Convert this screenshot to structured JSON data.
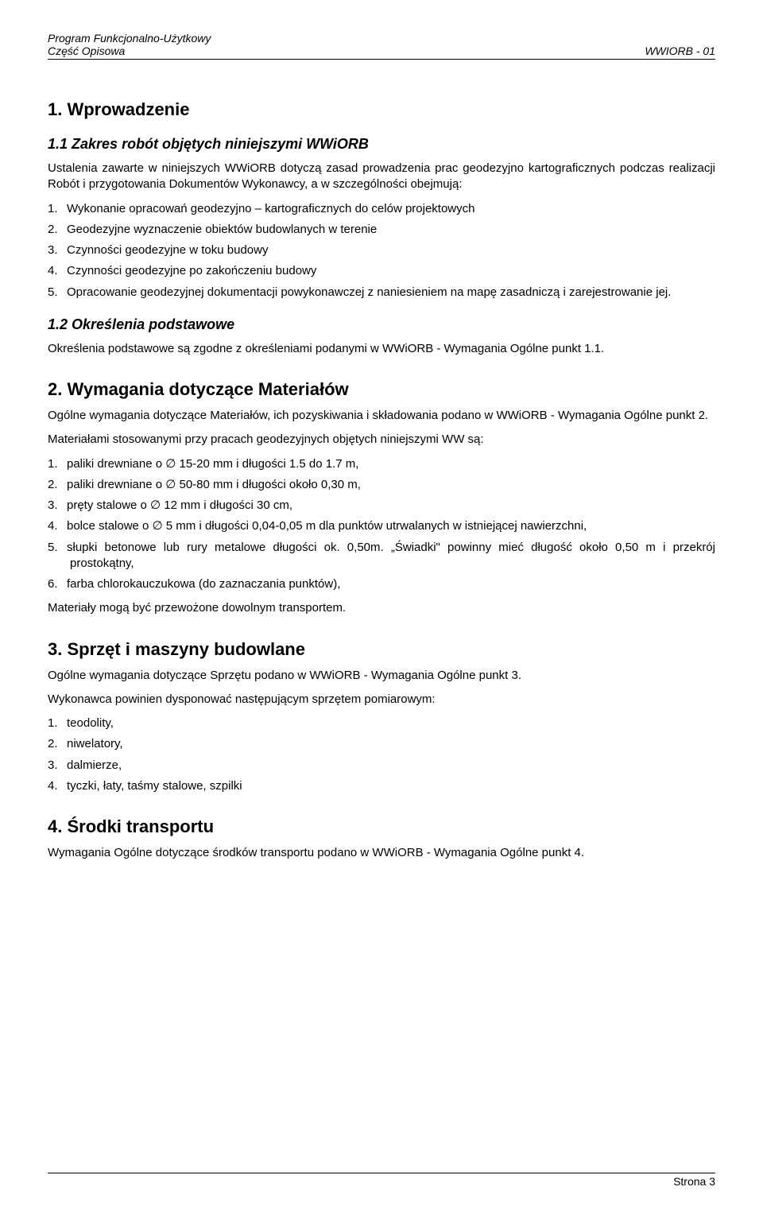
{
  "header": {
    "left_line1": "Program Funkcjonalno-Użytkowy",
    "left_line2": "Część Opisowa",
    "right": "WWIORB - 01"
  },
  "sections": {
    "s1": {
      "title": "1. Wprowadzenie",
      "s1_1": {
        "title": "1.1 Zakres robót objętych niniejszymi WWiORB",
        "intro": "Ustalenia zawarte w niniejszych WWiORB dotyczą zasad prowadzenia prac geodezyjno kartograficznych podczas realizacji Robót i przygotowania Dokumentów Wykonawcy, a w szczególności obejmują:",
        "items": [
          "Wykonanie opracowań geodezyjno – kartograficznych do celów projektowych",
          "Geodezyjne wyznaczenie obiektów budowlanych w terenie",
          "Czynności geodezyjne w toku budowy",
          "Czynności geodezyjne po zakończeniu budowy",
          "Opracowanie geodezyjnej dokumentacji powykonawczej z naniesieniem na mapę zasadniczą i zarejestrowanie jej."
        ]
      },
      "s1_2": {
        "title": "1.2   Określenia podstawowe",
        "text": "Określenia podstawowe są zgodne z określeniami podanymi w WWiORB - Wymagania Ogólne punkt 1.1."
      }
    },
    "s2": {
      "title": "2. Wymagania dotyczące Materiałów",
      "p1": "Ogólne wymagania dotyczące Materiałów, ich pozyskiwania i składowania podano w WWiORB - Wymagania Ogólne punkt 2.",
      "p2": "Materiałami stosowanymi przy pracach geodezyjnych objętych niniejszymi WW są:",
      "items": [
        "paliki drewniane o ∅ 15-20 mm i długości 1.5 do 1.7 m,",
        "paliki drewniane o ∅ 50-80 mm i długości około 0,30 m,",
        "pręty stalowe o ∅ 12 mm i długości 30 cm,",
        "bolce stalowe o ∅ 5 mm i długości 0,04-0,05 m dla punktów utrwalanych w istniejącej nawierzchni,",
        "słupki betonowe lub rury metalowe długości ok. 0,50m. „Świadki\" powinny mieć długość około 0,50 m i przekrój prostokątny,",
        "farba chlorokauczukowa (do zaznaczania punktów),"
      ],
      "p3": "Materiały mogą być przewożone dowolnym transportem."
    },
    "s3": {
      "title": "3. Sprzęt i maszyny budowlane",
      "p1": "Ogólne wymagania dotyczące Sprzętu podano w WWiORB - Wymagania Ogólne punkt 3.",
      "p2": "Wykonawca powinien dysponować następującym sprzętem pomiarowym:",
      "items": [
        "teodolity,",
        "niwelatory,",
        "dalmierze,",
        "tyczki, łaty, taśmy stalowe, szpilki"
      ]
    },
    "s4": {
      "title": "4. Środki transportu",
      "p1": "Wymagania Ogólne dotyczące środków transportu podano w WWiORB - Wymagania Ogólne punkt 4."
    }
  },
  "footer": {
    "page": "Strona 3"
  }
}
